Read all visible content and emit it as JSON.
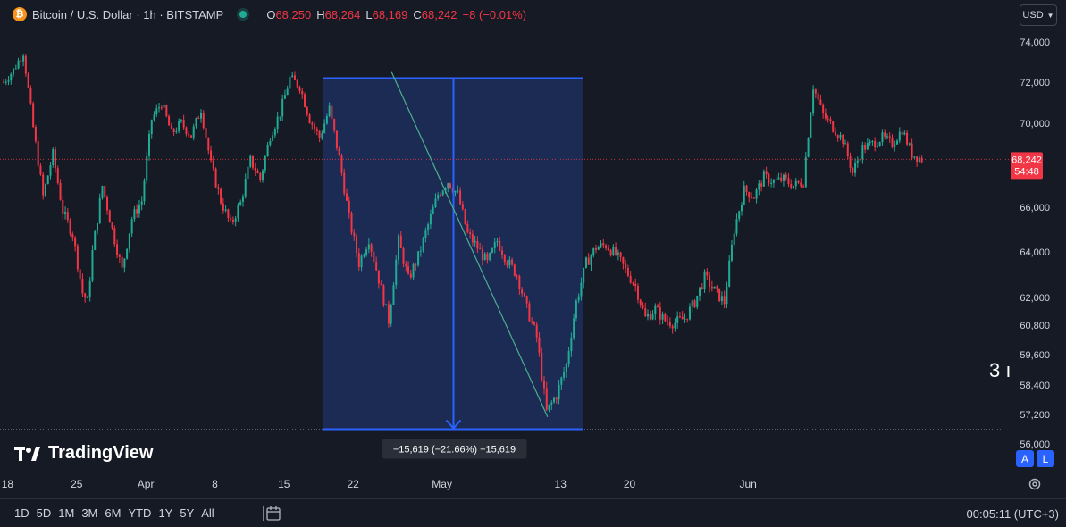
{
  "header": {
    "symbol": "Bitcoin / U.S. Dollar · 1h · BITSTAMP",
    "ohlc": [
      {
        "label": "O",
        "value": "68,250"
      },
      {
        "label": "H",
        "value": "68,264"
      },
      {
        "label": "L",
        "value": "68,169"
      },
      {
        "label": "C",
        "value": "68,242"
      }
    ],
    "change": "−8 (−0.01%)",
    "currency": "USD"
  },
  "brand": {
    "name": "TradingView"
  },
  "bottom": {
    "ranges": [
      "1D",
      "5D",
      "1M",
      "3M",
      "6M",
      "YTD",
      "1Y",
      "5Y",
      "All"
    ],
    "clock": "00:05:11 (UTC+3)"
  },
  "scale_buttons": {
    "auto": "A",
    "log": "L"
  },
  "side_glyph": "3 ı",
  "colors": {
    "background": "#161a25",
    "up": "#22ab94",
    "down": "#f23645",
    "measure_fill": "#1e3163",
    "measure_line": "#2962ff",
    "trendline": "#4caf8e"
  },
  "chart_data": {
    "type": "candlestick",
    "timeframe": "1h",
    "y_ticks": [
      74000,
      72000,
      70000,
      66000,
      64000,
      62000,
      60800,
      59600,
      58400,
      57200,
      56000
    ],
    "y_tick_labels": [
      "74,000",
      "72,000",
      "70,000",
      "66,000",
      "64,000",
      "62,000",
      "60,800",
      "59,600",
      "58,400",
      "57,200",
      "56,000"
    ],
    "x_labels": [
      "18",
      "25",
      "Apr",
      "8",
      "15",
      "22",
      "May",
      "13",
      "20",
      "Jun"
    ],
    "x_label_days": [
      18,
      25,
      32,
      39,
      46,
      53,
      62,
      74,
      81,
      93
    ],
    "last_price": {
      "value": 68242,
      "label": "68,242",
      "countdown": "54:48"
    },
    "high_dotted_line": 73800,
    "price_path": [
      [
        0,
        72000
      ],
      [
        1,
        72600
      ],
      [
        2,
        73500
      ],
      [
        3,
        69800
      ],
      [
        4,
        66500
      ],
      [
        5,
        68500
      ],
      [
        6,
        65800
      ],
      [
        7,
        64800
      ],
      [
        8,
        62200
      ],
      [
        8.5,
        61800
      ],
      [
        9,
        64000
      ],
      [
        10,
        67000
      ],
      [
        11,
        65000
      ],
      [
        12,
        63200
      ],
      [
        13,
        65500
      ],
      [
        14,
        66300
      ],
      [
        15,
        70200
      ],
      [
        16,
        71000
      ],
      [
        17,
        69500
      ],
      [
        18,
        70000
      ],
      [
        19,
        69400
      ],
      [
        20,
        70700
      ],
      [
        21,
        68000
      ],
      [
        22,
        66300
      ],
      [
        23,
        65200
      ],
      [
        24,
        66200
      ],
      [
        25,
        68200
      ],
      [
        26,
        67300
      ],
      [
        27,
        69400
      ],
      [
        28,
        70500
      ],
      [
        29,
        72200
      ],
      [
        30,
        71800
      ],
      [
        31,
        70200
      ],
      [
        32,
        69300
      ],
      [
        33,
        70700
      ],
      [
        34,
        68300
      ],
      [
        35,
        65500
      ],
      [
        36,
        63500
      ],
      [
        37,
        64600
      ],
      [
        38,
        62800
      ],
      [
        39,
        61000
      ],
      [
        40,
        64500
      ],
      [
        41,
        62800
      ],
      [
        42,
        63800
      ],
      [
        43,
        65200
      ],
      [
        44,
        66600
      ],
      [
        45,
        67200
      ],
      [
        46,
        66600
      ],
      [
        47,
        64800
      ],
      [
        48,
        64200
      ],
      [
        49,
        63500
      ],
      [
        50,
        64500
      ],
      [
        51,
        63600
      ],
      [
        52,
        63000
      ],
      [
        53,
        61500
      ],
      [
        54,
        60300
      ],
      [
        55,
        57300
      ],
      [
        56,
        58000
      ],
      [
        57,
        59200
      ],
      [
        58,
        61800
      ],
      [
        59,
        63500
      ],
      [
        60,
        64200
      ],
      [
        61,
        64300
      ],
      [
        62,
        63900
      ],
      [
        63,
        63200
      ],
      [
        64,
        62500
      ],
      [
        65,
        61100
      ],
      [
        66,
        61500
      ],
      [
        67,
        61000
      ],
      [
        68,
        60900
      ],
      [
        69,
        61100
      ],
      [
        70,
        61800
      ],
      [
        71,
        62900
      ],
      [
        72,
        62300
      ],
      [
        73,
        61800
      ],
      [
        74,
        65000
      ],
      [
        75,
        66800
      ],
      [
        76,
        66500
      ],
      [
        77,
        67400
      ],
      [
        78,
        67200
      ],
      [
        79,
        67300
      ],
      [
        80,
        67000
      ],
      [
        81,
        67200
      ],
      [
        82,
        71800
      ],
      [
        83,
        70400
      ],
      [
        84,
        69800
      ],
      [
        85,
        69200
      ],
      [
        86,
        67600
      ],
      [
        87,
        68800
      ],
      [
        88,
        69000
      ],
      [
        89,
        69300
      ],
      [
        90,
        69000
      ],
      [
        91,
        69700
      ],
      [
        92,
        68500
      ],
      [
        93,
        68242
      ]
    ],
    "measure": {
      "start_price": 72200,
      "end_price": 56600,
      "label": "−15,619 (−21.66%) −15,619"
    },
    "trendline": {
      "from": [
        39.3,
        72500
      ],
      "to": [
        55.1,
        57100
      ]
    }
  }
}
